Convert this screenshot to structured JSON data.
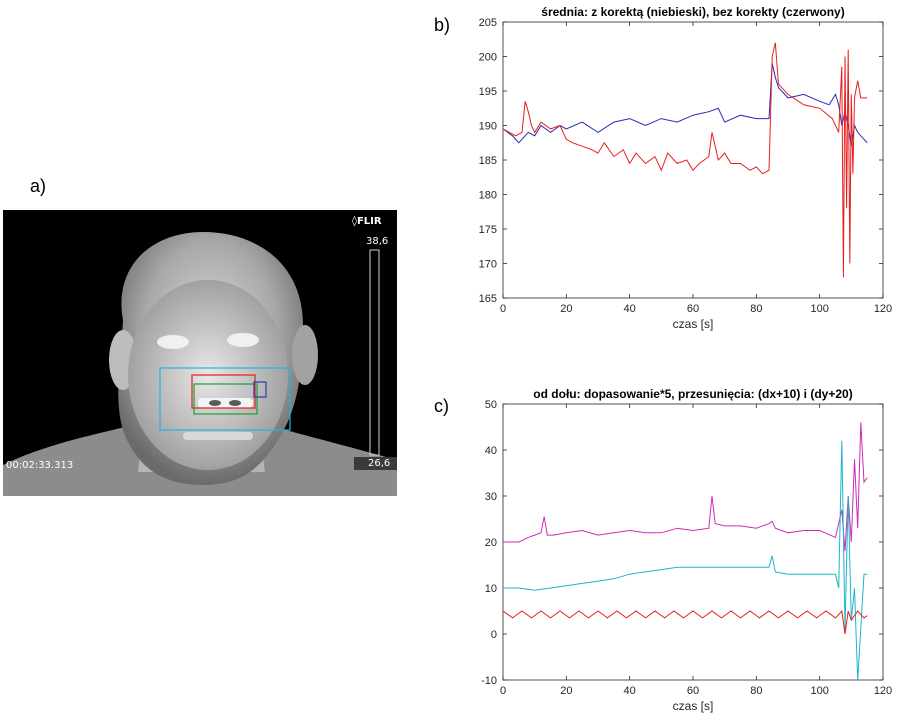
{
  "labels": {
    "a": "a)",
    "b": "b)",
    "c": "c)"
  },
  "thermal": {
    "brand": "FLIR",
    "scale_max": "38,6",
    "scale_min": "26,6",
    "timestamp": "00:02:33.313",
    "colors": {
      "roi_outer": "#26b4d8",
      "roi_red": "#e0201a",
      "roi_green": "#1e9e3a",
      "roi_blue": "#2c3ab0"
    }
  },
  "chart_data": [
    {
      "type": "line",
      "title": "średnia: z korektą (niebieski), bez korekty (czerwony)",
      "xlabel": "czas [s]",
      "ylabel": "",
      "xlim": [
        0,
        120
      ],
      "ylim": [
        165,
        205
      ],
      "xticks": [
        0,
        20,
        40,
        60,
        80,
        100,
        120
      ],
      "yticks": [
        165,
        170,
        175,
        180,
        185,
        190,
        195,
        200,
        205
      ],
      "series": [
        {
          "color": "#2a2ab0",
          "x": [
            0,
            3,
            5,
            8,
            10,
            12,
            15,
            18,
            20,
            25,
            30,
            35,
            40,
            45,
            50,
            55,
            60,
            65,
            68,
            70,
            75,
            80,
            84,
            85,
            86,
            87,
            90,
            95,
            100,
            103,
            105,
            106,
            107,
            108,
            109,
            110,
            111,
            112,
            114,
            115
          ],
          "y": [
            189.5,
            188.5,
            187.5,
            189,
            188.5,
            190,
            189,
            190,
            189.5,
            190.5,
            189,
            190.5,
            191,
            190,
            191,
            190.5,
            191.5,
            192,
            192.5,
            190.5,
            191.5,
            191,
            191,
            199,
            197,
            195.5,
            194,
            194.5,
            193.5,
            193,
            194.5,
            193,
            190,
            192,
            190,
            187,
            190,
            189,
            188,
            187.5
          ]
        },
        {
          "color": "#e81e1e",
          "x": [
            0,
            2,
            4,
            6,
            7,
            8,
            9,
            10,
            12,
            15,
            18,
            20,
            22,
            25,
            28,
            30,
            32,
            35,
            38,
            40,
            42,
            45,
            48,
            50,
            52,
            55,
            58,
            60,
            62,
            65,
            66,
            67,
            68,
            70,
            72,
            75,
            78,
            80,
            82,
            84,
            85,
            86,
            87,
            90,
            95,
            100,
            104,
            106,
            107,
            107.5,
            108,
            108.5,
            109,
            109.5,
            110,
            110.5,
            111,
            112,
            113,
            114,
            115
          ],
          "y": [
            189.5,
            189,
            188.5,
            189,
            193.5,
            192,
            190,
            189,
            190.5,
            189.5,
            190,
            188,
            187.5,
            187,
            186.5,
            186,
            187.5,
            185.5,
            186.5,
            184.5,
            186,
            184.5,
            185.5,
            183.5,
            186,
            184.5,
            185,
            183.5,
            184.5,
            185.5,
            189,
            187,
            185,
            186,
            184.5,
            184.5,
            183.5,
            184,
            183,
            183.5,
            200,
            202,
            196,
            194.5,
            193,
            192.5,
            191,
            189,
            198.5,
            168,
            200,
            178,
            201,
            170,
            194.5,
            183,
            194,
            196.5,
            194,
            194,
            194
          ]
        }
      ]
    },
    {
      "type": "line",
      "title": "od dołu: dopasowanie*5, przesunięcia: (dx+10) i (dy+20)",
      "xlabel": "czas [s]",
      "ylabel": "",
      "xlim": [
        0,
        120
      ],
      "ylim": [
        -10,
        50
      ],
      "xticks": [
        0,
        20,
        40,
        60,
        80,
        100,
        120
      ],
      "yticks": [
        -10,
        0,
        10,
        20,
        30,
        40,
        50
      ],
      "series": [
        {
          "color": "#d02ab8",
          "x": [
            0,
            5,
            8,
            10,
            12,
            13,
            14,
            16,
            20,
            25,
            30,
            35,
            40,
            45,
            50,
            55,
            60,
            65,
            66,
            67,
            70,
            75,
            80,
            84,
            85,
            86,
            90,
            95,
            100,
            105,
            107,
            108,
            109,
            110,
            111,
            112,
            113,
            114,
            115
          ],
          "y": [
            20,
            20,
            21,
            21.5,
            22,
            25.5,
            21.5,
            21.5,
            22,
            22.5,
            21.5,
            22,
            22.5,
            22,
            22,
            23,
            22.5,
            23,
            30,
            24,
            23.5,
            23.5,
            23,
            24,
            24.5,
            23,
            22,
            22.5,
            22.5,
            21,
            27,
            18,
            30,
            20,
            38,
            23,
            46,
            33,
            34
          ]
        },
        {
          "color": "#1eb4cc",
          "x": [
            0,
            5,
            10,
            15,
            20,
            25,
            30,
            35,
            40,
            45,
            50,
            55,
            60,
            65,
            70,
            75,
            80,
            84,
            85,
            86,
            90,
            95,
            100,
            105,
            106,
            107,
            108,
            109,
            110,
            111,
            112,
            114,
            115
          ],
          "y": [
            10,
            10,
            9.5,
            10,
            10.5,
            11,
            11.5,
            12,
            13,
            13.5,
            14,
            14.5,
            14.5,
            14.5,
            14.5,
            14.5,
            14.5,
            14.5,
            17,
            13.5,
            13,
            13,
            13,
            13,
            10,
            42,
            1,
            30,
            3,
            10,
            -10,
            13,
            13
          ]
        },
        {
          "color": "#e81e1e",
          "x": [
            0,
            3,
            6,
            9,
            12,
            15,
            18,
            21,
            24,
            27,
            30,
            33,
            36,
            39,
            42,
            45,
            48,
            51,
            54,
            57,
            60,
            63,
            66,
            69,
            72,
            75,
            78,
            81,
            84,
            87,
            90,
            93,
            96,
            99,
            102,
            105,
            107,
            108,
            109,
            110,
            112,
            114,
            115
          ],
          "y": [
            5,
            3.5,
            5,
            3.5,
            5,
            3.5,
            5,
            3.5,
            5,
            3.5,
            5,
            3.5,
            5,
            3.5,
            5,
            3.5,
            5,
            3.5,
            5,
            3.5,
            5,
            3.5,
            5,
            3.5,
            5,
            3.5,
            5,
            3.5,
            5,
            3.5,
            5,
            3.5,
            5,
            3.5,
            5,
            3.5,
            5,
            0,
            5,
            3,
            5,
            3.5,
            4
          ]
        }
      ]
    }
  ]
}
